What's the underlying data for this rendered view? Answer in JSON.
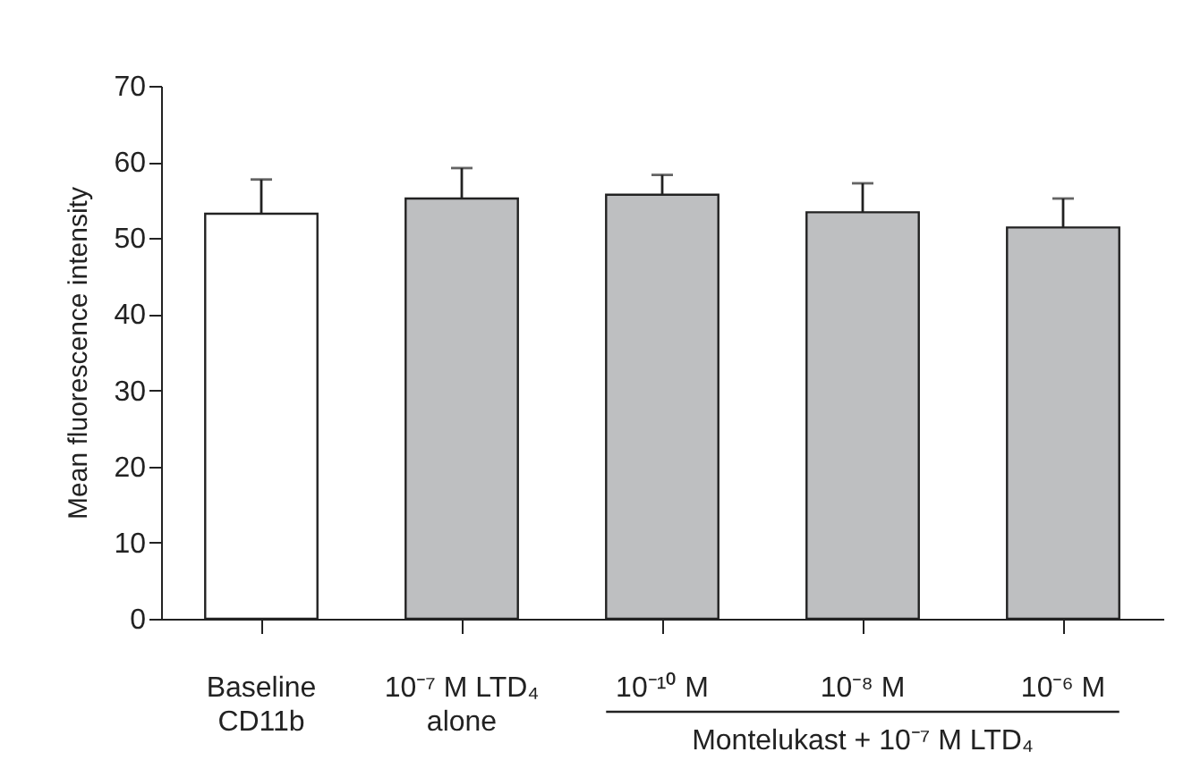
{
  "chart_data": {
    "type": "bar",
    "ylabel": "Mean fluorescence intensity",
    "categories": [
      "Baseline\nCD11b",
      "10⁻⁷ M LTD₄\nalone",
      "10⁻¹⁰ M",
      "10⁻⁸ M",
      "10⁻⁶ M"
    ],
    "values": [
      53.2,
      55.2,
      55.7,
      53.4,
      51.4
    ],
    "colors": [
      "#ffffff",
      "#bebfc1",
      "#bebfc1",
      "#bebfc1",
      "#bebfc1"
    ],
    "errors": [
      [
        53.2,
        57.7
      ],
      [
        55.2,
        59.2
      ],
      [
        55.7,
        58.3
      ],
      [
        53.4,
        57.2
      ],
      [
        51.4,
        55.2
      ]
    ],
    "annotations": [
      "Montelukast + 10⁻⁷ M LTD₄"
    ],
    "ylim": [
      0,
      70
    ],
    "yticks": [
      0,
      10,
      20,
      30,
      40,
      50,
      60,
      70
    ],
    "grid": false
  }
}
